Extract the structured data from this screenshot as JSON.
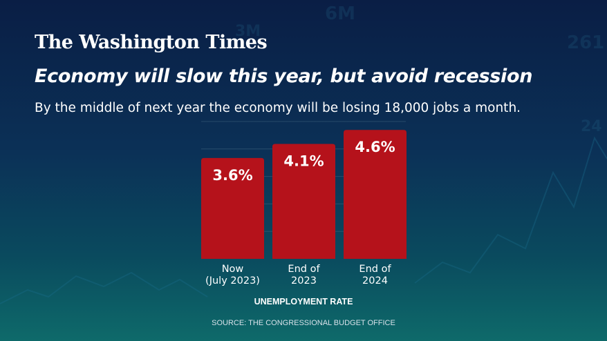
{
  "masthead": "The Washington Times",
  "headline": "Economy will slow this year, but avoid recession",
  "subhead": "By the middle of next year the economy will be losing 18,000 jobs a month.",
  "source": "SOURCE: THE CONGRESSIONAL BUDGET OFFICE",
  "colors": {
    "bar": "#b5121b",
    "background_top": "#0a1e45",
    "background_bottom": "#0e6a6a"
  },
  "chart_data": {
    "type": "bar",
    "categories": [
      [
        "Now",
        "(July 2023)"
      ],
      [
        "End of",
        "2023"
      ],
      [
        "End of",
        "2024"
      ]
    ],
    "values": [
      3.6,
      4.1,
      4.6
    ],
    "value_labels": [
      "3.6%",
      "4.1%",
      "4.6%"
    ],
    "xlabel": "UNEMPLOYMENT RATE",
    "ylabel": "",
    "grid": true,
    "legend": "none"
  }
}
